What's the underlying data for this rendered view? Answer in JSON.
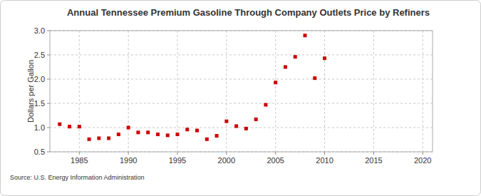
{
  "chart_data": {
    "type": "scatter",
    "title": "Annual Tennessee Premium Gasoline Through Company Outlets Price by Refiners",
    "y_label": "Dollars per Gallon",
    "source": "Source: U.S. Energy Information Administration",
    "x": [
      1983,
      1984,
      1985,
      1986,
      1987,
      1988,
      1989,
      1990,
      1991,
      1992,
      1993,
      1994,
      1995,
      1996,
      1997,
      1998,
      1999,
      2000,
      2001,
      2002,
      2003,
      2004,
      2005,
      2006,
      2007,
      2008,
      2009,
      2010
    ],
    "values": [
      1.07,
      1.02,
      1.02,
      0.76,
      0.78,
      0.78,
      0.86,
      1.0,
      0.9,
      0.9,
      0.86,
      0.84,
      0.86,
      0.96,
      0.94,
      0.76,
      0.83,
      1.13,
      1.03,
      0.98,
      1.17,
      1.47,
      1.93,
      2.25,
      2.46,
      2.9,
      2.02,
      2.43
    ],
    "color": "#cc0000",
    "marker": "square",
    "xlim": [
      1982,
      2021
    ],
    "xticks": [
      1985,
      1990,
      1995,
      2000,
      2005,
      2010,
      2015,
      2020
    ],
    "ylim": [
      0.5,
      3.0
    ],
    "yticks": [
      0.5,
      {
        "value": 1,
        "label": "1.0"
      },
      1.5,
      {
        "value": 2,
        "label": "2.0"
      },
      2.5,
      {
        "value": 3,
        "label": "3.0"
      }
    ],
    "grid": true
  }
}
